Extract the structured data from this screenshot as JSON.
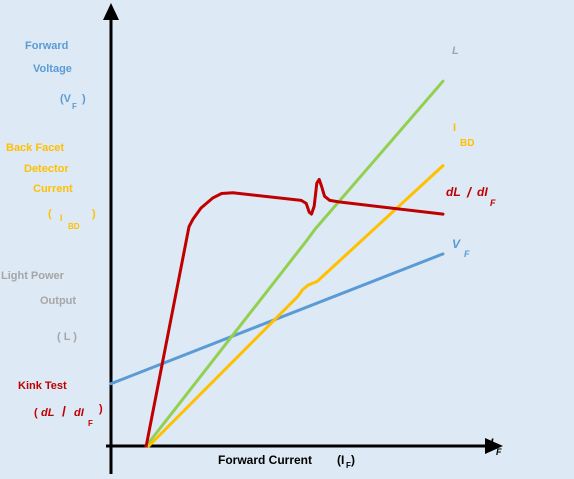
{
  "colors": {
    "background": "#dde9f5",
    "axis": "#000000",
    "vf": "#5b9bd5",
    "ibd": "#ffc000",
    "light": "#92d050",
    "kink": "#c00000",
    "light_label": "#a6a6a6"
  },
  "left_labels": {
    "vf": {
      "line1": "Forward",
      "line2": "Voltage",
      "symbol": "(V",
      "sub": "F",
      "close": ")"
    },
    "ibd": {
      "line1": "Back Facet",
      "line2": "Detector",
      "line3": "Current",
      "open": "(",
      "symbol": "I",
      "sub": "BD",
      "close": ")"
    },
    "light": {
      "line1": "Light Power",
      "line2": "Output",
      "text": "(  L  )"
    },
    "kink": {
      "line1": "Kink Test",
      "open": "(",
      "num": "dL",
      "slash": "/",
      "den": "dI",
      "sub": "F",
      "close": ")"
    }
  },
  "curve_labels": {
    "light": "L",
    "ibd": {
      "symbol": "I",
      "sub": "BD"
    },
    "kink": {
      "num": "dL",
      "slash": "/",
      "den": "dI",
      "sub": "F"
    },
    "vf": {
      "symbol": "V",
      "sub": "F"
    }
  },
  "axis_labels": {
    "xlabel": "Forward Current",
    "xlabel_sym": "(I",
    "xlabel_sub": "F",
    "xlabel_close": ")",
    "x_end": {
      "symbol": "I",
      "sub": "F"
    }
  },
  "chart_data": {
    "type": "line",
    "title": "",
    "xlabel": "Forward Current (IF)",
    "ylabel": "",
    "xlim": [
      0,
      100
    ],
    "ylim": [
      0,
      100
    ],
    "series": [
      {
        "name": "VF",
        "color_key": "vf",
        "points": [
          [
            0,
            16.3
          ],
          [
            100,
            50.3
          ]
        ]
      },
      {
        "name": "L",
        "color_key": "light",
        "points": [
          [
            10.6,
            0
          ],
          [
            58.8,
            53.6
          ],
          [
            60.2,
            55.3
          ],
          [
            61.5,
            56.8
          ],
          [
            100,
            95.5
          ]
        ]
      },
      {
        "name": "IBD",
        "color_key": "ibd",
        "points": [
          [
            11.4,
            0
          ],
          [
            56.3,
            39.2
          ],
          [
            57.7,
            40.9
          ],
          [
            59.3,
            42.1
          ],
          [
            62.1,
            43.1
          ],
          [
            100,
            73.4
          ]
        ]
      },
      {
        "name": "dL / dIF",
        "color_key": "kink",
        "points": [
          [
            10.6,
            0
          ],
          [
            23.5,
            57.4
          ],
          [
            24.7,
            59.4
          ],
          [
            27.1,
            62.3
          ],
          [
            30.6,
            64.9
          ],
          [
            33.3,
            66.1
          ],
          [
            36.7,
            66.3
          ],
          [
            57.3,
            64.3
          ],
          [
            58.8,
            63.5
          ],
          [
            59.7,
            61.2
          ],
          [
            60.4,
            60.7
          ],
          [
            61.2,
            62.8
          ],
          [
            62.0,
            68.8
          ],
          [
            62.7,
            69.8
          ],
          [
            63.5,
            67.8
          ],
          [
            64.3,
            65.4
          ],
          [
            65.9,
            64.3
          ],
          [
            68.6,
            63.9
          ],
          [
            100,
            60.7
          ]
        ]
      }
    ]
  }
}
